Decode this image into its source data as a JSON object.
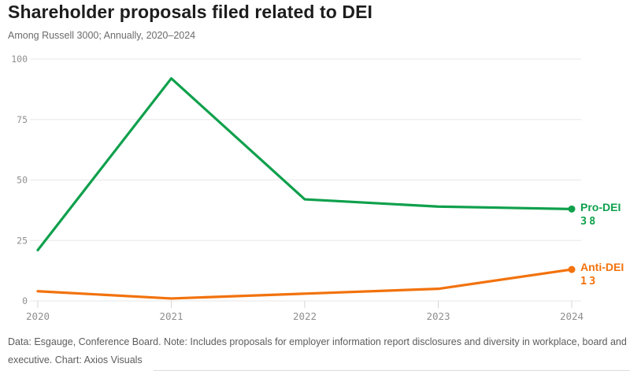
{
  "title": "Shareholder proposals filed related to DEI",
  "subtitle": "Among Russell 3000; Annually, 2020–2024",
  "footer": {
    "line1": "Data: Esgauge, Conference Board. Note: Includes proposals for employer information report disclosures and diversity in workplace, board and",
    "line2": "executive. Chart: Axios Visuals"
  },
  "colors": {
    "pro_dei": "#0fa04c",
    "anti_dei": "#f2720d",
    "gridline": "#e7e7e7",
    "tick_mark": "#d4d4d4",
    "axis_text": "#8f8f8f",
    "title_text": "#1d1d1d"
  },
  "chart_data": {
    "type": "line",
    "categories": [
      "2020",
      "2021",
      "2022",
      "2023",
      "2024"
    ],
    "series": [
      {
        "name": "Pro-DEI",
        "color": "#0fa04c",
        "values": [
          21,
          92,
          42,
          39,
          38
        ],
        "end_value": 38
      },
      {
        "name": "Anti-DEI",
        "color": "#f2720d",
        "values": [
          4,
          1,
          3,
          5,
          13
        ],
        "end_value": 13
      }
    ],
    "title": "Shareholder proposals filed related to DEI",
    "subtitle": "Among Russell 3000; Annually, 2020–2024",
    "xlabel": "",
    "ylabel": "",
    "yticks": [
      0,
      25,
      50,
      75,
      100
    ],
    "ylim": [
      0,
      100
    ],
    "grid": true,
    "legend_position": "line-end labels with final values"
  }
}
